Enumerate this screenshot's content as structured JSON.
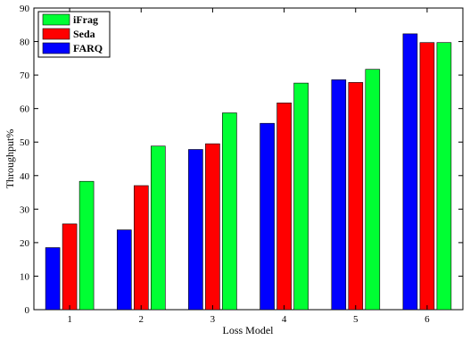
{
  "chart_data": {
    "type": "bar",
    "categories": [
      "1",
      "2",
      "3",
      "4",
      "5",
      "6"
    ],
    "series": [
      {
        "name": "FARQ",
        "color": "#0000ff",
        "values": [
          18.5,
          23.8,
          47.8,
          55.6,
          68.6,
          82.3
        ]
      },
      {
        "name": "Seda",
        "color": "#ff0000",
        "values": [
          25.6,
          37.0,
          49.5,
          61.7,
          67.8,
          79.7
        ]
      },
      {
        "name": "iFrag",
        "color": "#00ff33",
        "values": [
          38.3,
          48.8,
          58.7,
          67.6,
          71.7,
          79.7
        ]
      }
    ],
    "xlabel": "Loss Model",
    "ylabel": "Throughput%",
    "ylim": [
      0,
      90
    ],
    "yticks": [
      0,
      10,
      20,
      30,
      40,
      50,
      60,
      70,
      80,
      90
    ],
    "grid": false,
    "legend": {
      "placement": "top-left",
      "order": [
        "iFrag",
        "Seda",
        "FARQ"
      ]
    }
  }
}
